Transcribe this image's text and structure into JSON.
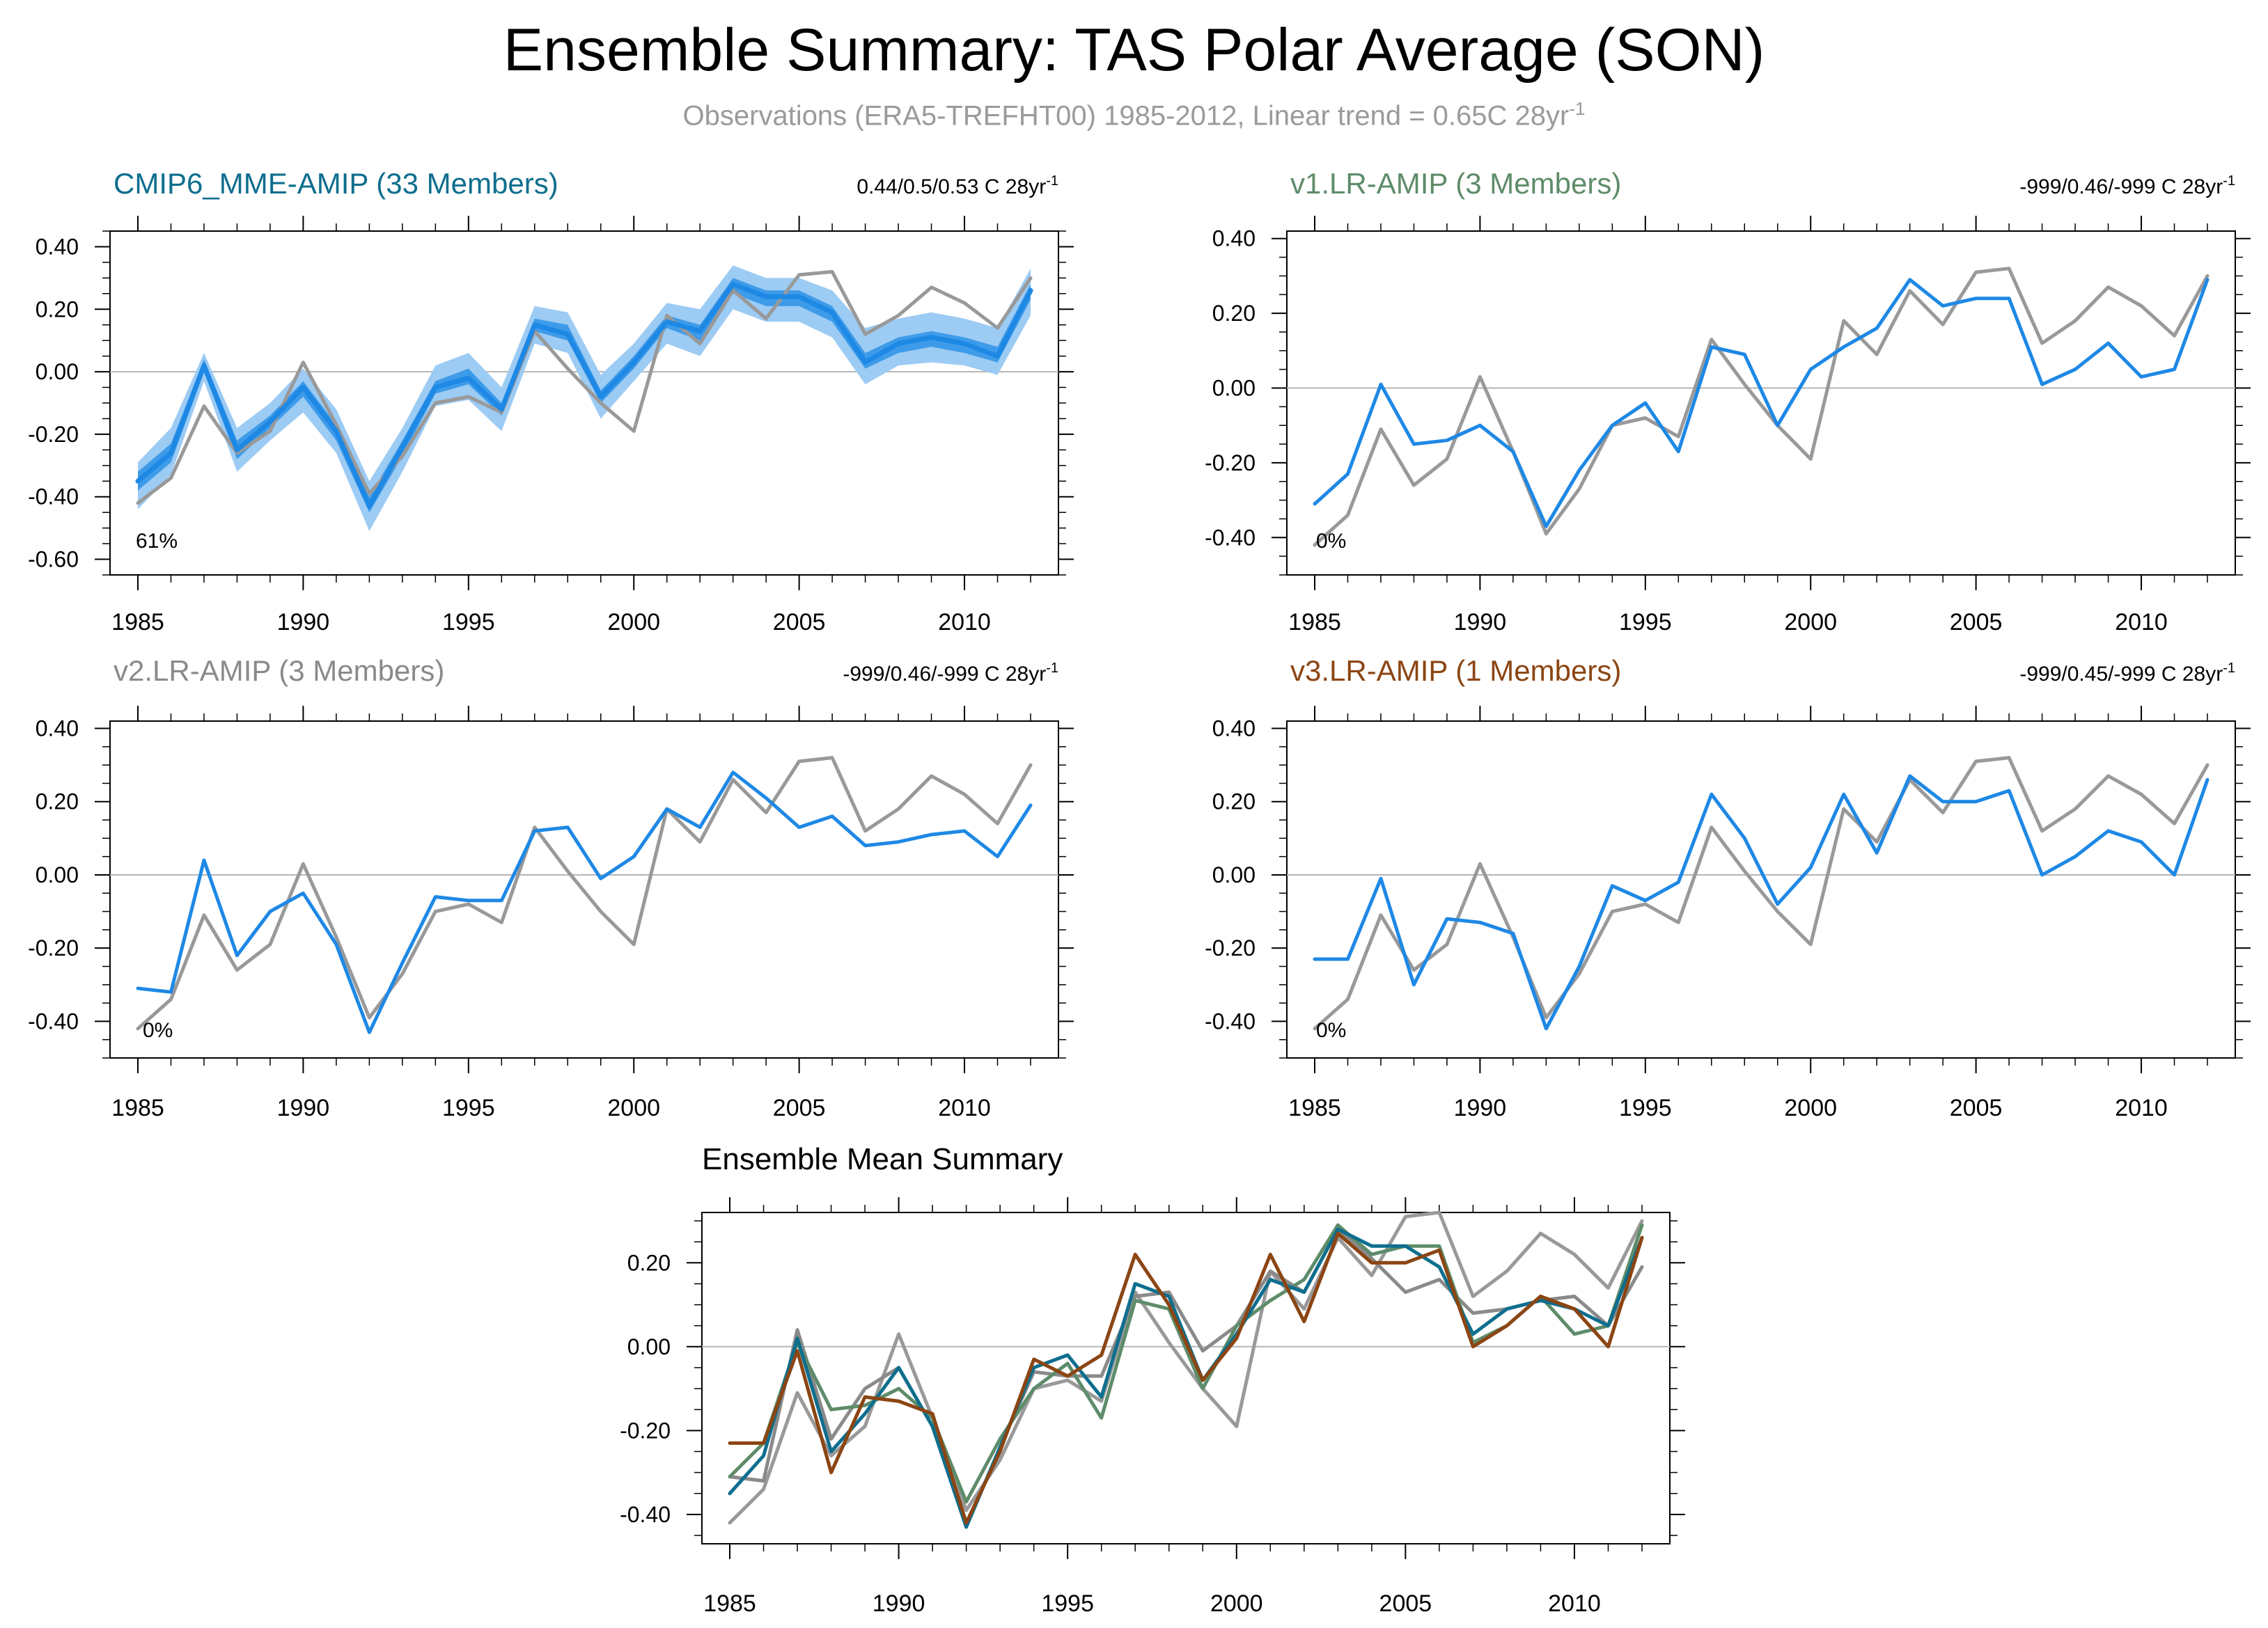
{
  "title": "Ensemble Summary: TAS Polar Average (SON)",
  "subtitle": {
    "main": "Observations (ERA5-TREFHT00) 1985-2012, Linear trend = 0.65C 28yr",
    "exponent": "-1"
  },
  "colors": {
    "observations": "#999999",
    "model": "#1e88e5",
    "band_inner": "#3d9be9",
    "band_outer": "#9ccbf4",
    "cmip6": "#0e6e8e",
    "v1": "#5e8c6a",
    "v2": "#8a8a8a",
    "v3": "#8b4513"
  },
  "chart_data": [
    {
      "id": "cmip6",
      "type": "line",
      "title": "CMIP6_MME-AMIP (33 Members)",
      "title_color": "#0e6e8e",
      "trend_label": "0.44/0.5/0.53 C 28yr",
      "trend_exponent": "-1",
      "percent_label": "61%",
      "ylim": [
        -0.65,
        0.45
      ],
      "yticks": [
        -0.6,
        -0.4,
        -0.2,
        0.0,
        0.2,
        0.4
      ],
      "ytick_labels": [
        "-0.60",
        "-0.40",
        "-0.20",
        "0.00",
        "0.20",
        "0.40"
      ],
      "xlim": [
        1985,
        2012
      ],
      "xticks": [
        1985,
        1990,
        1995,
        2000,
        2005,
        2010
      ],
      "ytick_side": "left",
      "x": [
        1985,
        1986,
        1987,
        1988,
        1989,
        1990,
        1991,
        1992,
        1993,
        1994,
        1995,
        1996,
        1997,
        1998,
        1999,
        2000,
        2001,
        2002,
        2003,
        2004,
        2005,
        2006,
        2007,
        2008,
        2009,
        2010,
        2011,
        2012
      ],
      "bands": [
        {
          "name": "outer",
          "color": "#9ccbf4",
          "lower": [
            -0.44,
            -0.33,
            -0.03,
            -0.32,
            -0.22,
            -0.13,
            -0.26,
            -0.51,
            -0.32,
            -0.11,
            -0.09,
            -0.19,
            0.09,
            0.06,
            -0.15,
            -0.03,
            0.09,
            0.05,
            0.2,
            0.16,
            0.16,
            0.11,
            -0.04,
            0.02,
            0.03,
            0.02,
            -0.01,
            0.18
          ],
          "upper": [
            -0.29,
            -0.18,
            0.06,
            -0.18,
            -0.1,
            0.01,
            -0.12,
            -0.35,
            -0.18,
            0.02,
            0.06,
            -0.05,
            0.21,
            0.19,
            -0.01,
            0.09,
            0.22,
            0.2,
            0.34,
            0.3,
            0.3,
            0.26,
            0.14,
            0.17,
            0.19,
            0.17,
            0.14,
            0.33
          ]
        },
        {
          "name": "inner",
          "color": "#3d9be9",
          "lower": [
            -0.38,
            -0.29,
            0.0,
            -0.28,
            -0.18,
            -0.08,
            -0.22,
            -0.45,
            -0.27,
            -0.07,
            -0.04,
            -0.14,
            0.13,
            0.1,
            -0.1,
            0.01,
            0.14,
            0.1,
            0.25,
            0.21,
            0.21,
            0.16,
            0.01,
            0.06,
            0.08,
            0.06,
            0.03,
            0.23
          ],
          "upper": [
            -0.32,
            -0.23,
            0.04,
            -0.22,
            -0.14,
            -0.03,
            -0.17,
            -0.4,
            -0.22,
            -0.03,
            0.01,
            -0.1,
            0.17,
            0.15,
            -0.06,
            0.05,
            0.18,
            0.15,
            0.3,
            0.26,
            0.26,
            0.21,
            0.06,
            0.11,
            0.13,
            0.11,
            0.08,
            0.28
          ]
        }
      ],
      "series": [
        {
          "role": "obs",
          "color": "#999999",
          "values": [
            -0.42,
            -0.34,
            -0.11,
            -0.26,
            -0.19,
            0.03,
            -0.17,
            -0.39,
            -0.27,
            -0.1,
            -0.08,
            -0.13,
            0.13,
            0.01,
            -0.1,
            -0.19,
            0.18,
            0.09,
            0.26,
            0.17,
            0.31,
            0.32,
            0.12,
            0.18,
            0.27,
            0.22,
            0.14,
            0.3
          ]
        },
        {
          "role": "model",
          "color": "#1e88e5",
          "width": 7,
          "values": [
            -0.35,
            -0.26,
            0.02,
            -0.25,
            -0.16,
            -0.05,
            -0.19,
            -0.43,
            -0.24,
            -0.05,
            -0.02,
            -0.12,
            0.15,
            0.12,
            -0.08,
            0.03,
            0.16,
            0.13,
            0.28,
            0.24,
            0.24,
            0.19,
            0.03,
            0.09,
            0.11,
            0.09,
            0.05,
            0.26
          ]
        }
      ]
    },
    {
      "id": "v1",
      "type": "line",
      "title": "v1.LR-AMIP (3 Members)",
      "title_color": "#5e8c6a",
      "trend_label": "-999/0.46/-999 C 28yr",
      "trend_exponent": "-1",
      "percent_label": "0%",
      "ylim": [
        -0.5,
        0.42
      ],
      "yticks": [
        -0.4,
        -0.2,
        0.0,
        0.2,
        0.4
      ],
      "ytick_labels": [
        "-0.40",
        "-0.20",
        "0.00",
        "0.20",
        "0.40"
      ],
      "xlim": [
        1985,
        2012
      ],
      "xticks": [
        1985,
        1990,
        1995,
        2000,
        2005,
        2010
      ],
      "ytick_side": "left",
      "x": [
        1985,
        1986,
        1987,
        1988,
        1989,
        1990,
        1991,
        1992,
        1993,
        1994,
        1995,
        1996,
        1997,
        1998,
        1999,
        2000,
        2001,
        2002,
        2003,
        2004,
        2005,
        2006,
        2007,
        2008,
        2009,
        2010,
        2011,
        2012
      ],
      "series": [
        {
          "role": "obs",
          "color": "#999999",
          "values": [
            -0.42,
            -0.34,
            -0.11,
            -0.26,
            -0.19,
            0.03,
            -0.17,
            -0.39,
            -0.27,
            -0.1,
            -0.08,
            -0.13,
            0.13,
            0.01,
            -0.1,
            -0.19,
            0.18,
            0.09,
            0.26,
            0.17,
            0.31,
            0.32,
            0.12,
            0.18,
            0.27,
            0.22,
            0.14,
            0.3
          ]
        },
        {
          "role": "model",
          "color": "#1e88e5",
          "values": [
            -0.31,
            -0.23,
            0.01,
            -0.15,
            -0.14,
            -0.1,
            -0.17,
            -0.37,
            -0.22,
            -0.1,
            -0.04,
            -0.17,
            0.11,
            0.09,
            -0.1,
            0.05,
            0.11,
            0.16,
            0.29,
            0.22,
            0.24,
            0.24,
            0.01,
            0.05,
            0.12,
            0.03,
            0.05,
            0.29
          ]
        }
      ]
    },
    {
      "id": "v2",
      "type": "line",
      "title": "v2.LR-AMIP (3 Members)",
      "title_color": "#8a8a8a",
      "trend_label": "-999/0.46/-999 C 28yr",
      "trend_exponent": "-1",
      "percent_label": "0%",
      "ylim": [
        -0.5,
        0.42
      ],
      "yticks": [
        -0.4,
        -0.2,
        0.0,
        0.2,
        0.4
      ],
      "ytick_labels": [
        "-0.40",
        "-0.20",
        "0.00",
        "0.20",
        "0.40"
      ],
      "xlim": [
        1985,
        2012
      ],
      "xticks": [
        1985,
        1990,
        1995,
        2000,
        2005,
        2010
      ],
      "ytick_side": "left",
      "x": [
        1985,
        1986,
        1987,
        1988,
        1989,
        1990,
        1991,
        1992,
        1993,
        1994,
        1995,
        1996,
        1997,
        1998,
        1999,
        2000,
        2001,
        2002,
        2003,
        2004,
        2005,
        2006,
        2007,
        2008,
        2009,
        2010,
        2011,
        2012
      ],
      "series": [
        {
          "role": "obs",
          "color": "#999999",
          "values": [
            -0.42,
            -0.34,
            -0.11,
            -0.26,
            -0.19,
            0.03,
            -0.17,
            -0.39,
            -0.27,
            -0.1,
            -0.08,
            -0.13,
            0.13,
            0.01,
            -0.1,
            -0.19,
            0.18,
            0.09,
            0.26,
            0.17,
            0.31,
            0.32,
            0.12,
            0.18,
            0.27,
            0.22,
            0.14,
            0.3
          ]
        },
        {
          "role": "model",
          "color": "#1e88e5",
          "values": [
            -0.31,
            -0.32,
            0.04,
            -0.22,
            -0.1,
            -0.05,
            -0.19,
            -0.43,
            -0.24,
            -0.06,
            -0.07,
            -0.07,
            0.12,
            0.13,
            -0.01,
            0.05,
            0.18,
            0.13,
            0.28,
            0.21,
            0.13,
            0.16,
            0.08,
            0.09,
            0.11,
            0.12,
            0.05,
            0.19
          ]
        }
      ]
    },
    {
      "id": "v3",
      "type": "line",
      "title": "v3.LR-AMIP (1 Members)",
      "title_color": "#8b4513",
      "trend_label": "-999/0.45/-999 C 28yr",
      "trend_exponent": "-1",
      "percent_label": "0%",
      "ylim": [
        -0.5,
        0.42
      ],
      "yticks": [
        -0.4,
        -0.2,
        0.0,
        0.2,
        0.4
      ],
      "ytick_labels": [
        "-0.40",
        "-0.20",
        "0.00",
        "0.20",
        "0.40"
      ],
      "xlim": [
        1985,
        2012
      ],
      "xticks": [
        1985,
        1990,
        1995,
        2000,
        2005,
        2010
      ],
      "ytick_side": "left",
      "x": [
        1985,
        1986,
        1987,
        1988,
        1989,
        1990,
        1991,
        1992,
        1993,
        1994,
        1995,
        1996,
        1997,
        1998,
        1999,
        2000,
        2001,
        2002,
        2003,
        2004,
        2005,
        2006,
        2007,
        2008,
        2009,
        2010,
        2011,
        2012
      ],
      "series": [
        {
          "role": "obs",
          "color": "#999999",
          "values": [
            -0.42,
            -0.34,
            -0.11,
            -0.26,
            -0.19,
            0.03,
            -0.17,
            -0.39,
            -0.27,
            -0.1,
            -0.08,
            -0.13,
            0.13,
            0.01,
            -0.1,
            -0.19,
            0.18,
            0.09,
            0.26,
            0.17,
            0.31,
            0.32,
            0.12,
            0.18,
            0.27,
            0.22,
            0.14,
            0.3
          ]
        },
        {
          "role": "model",
          "color": "#1e88e5",
          "values": [
            -0.23,
            -0.23,
            -0.01,
            -0.3,
            -0.12,
            -0.13,
            -0.16,
            -0.42,
            -0.25,
            -0.03,
            -0.07,
            -0.02,
            0.22,
            0.1,
            -0.08,
            0.02,
            0.22,
            0.06,
            0.27,
            0.2,
            0.2,
            0.23,
            0.0,
            0.05,
            0.12,
            0.09,
            0.0,
            0.26
          ]
        }
      ]
    },
    {
      "id": "mean",
      "type": "line",
      "title": "Ensemble Mean Summary",
      "title_color": "#000000",
      "ylim": [
        -0.47,
        0.32
      ],
      "yticks": [
        -0.4,
        -0.2,
        0.0,
        0.2
      ],
      "ytick_labels": [
        "-0.40",
        "-0.20",
        "0.00",
        "0.20"
      ],
      "xlim": [
        1985,
        2012
      ],
      "xticks": [
        1985,
        1990,
        1995,
        2000,
        2005,
        2010
      ],
      "ytick_side": "left",
      "x": [
        1985,
        1986,
        1987,
        1988,
        1989,
        1990,
        1991,
        1992,
        1993,
        1994,
        1995,
        1996,
        1997,
        1998,
        1999,
        2000,
        2001,
        2002,
        2003,
        2004,
        2005,
        2006,
        2007,
        2008,
        2009,
        2010,
        2011,
        2012
      ],
      "series": [
        {
          "role": "obs",
          "color": "#999999",
          "values": [
            -0.42,
            -0.34,
            -0.11,
            -0.26,
            -0.19,
            0.03,
            -0.17,
            -0.39,
            -0.27,
            -0.1,
            -0.08,
            -0.13,
            0.13,
            0.01,
            -0.1,
            -0.19,
            0.18,
            0.09,
            0.26,
            0.17,
            0.31,
            0.32,
            0.12,
            0.18,
            0.27,
            0.22,
            0.14,
            0.3
          ]
        },
        {
          "role": "v2",
          "color": "#8a8a8a",
          "values": [
            -0.31,
            -0.32,
            0.04,
            -0.22,
            -0.1,
            -0.05,
            -0.19,
            -0.43,
            -0.24,
            -0.06,
            -0.07,
            -0.07,
            0.12,
            0.13,
            -0.01,
            0.05,
            0.18,
            0.13,
            0.28,
            0.21,
            0.13,
            0.16,
            0.08,
            0.09,
            0.11,
            0.12,
            0.05,
            0.19
          ]
        },
        {
          "role": "v1",
          "color": "#5e8c6a",
          "values": [
            -0.31,
            -0.23,
            0.01,
            -0.15,
            -0.14,
            -0.1,
            -0.17,
            -0.37,
            -0.22,
            -0.1,
            -0.04,
            -0.17,
            0.11,
            0.09,
            -0.1,
            0.05,
            0.11,
            0.16,
            0.29,
            0.22,
            0.24,
            0.24,
            0.01,
            0.05,
            0.12,
            0.03,
            0.05,
            0.29
          ]
        },
        {
          "role": "cmip6",
          "color": "#0e6e8e",
          "values": [
            -0.35,
            -0.26,
            0.02,
            -0.25,
            -0.16,
            -0.05,
            -0.19,
            -0.43,
            -0.24,
            -0.05,
            -0.02,
            -0.12,
            0.15,
            0.12,
            -0.08,
            0.03,
            0.16,
            0.13,
            0.28,
            0.24,
            0.24,
            0.19,
            0.03,
            0.09,
            0.11,
            0.09,
            0.05,
            0.26
          ]
        },
        {
          "role": "v3",
          "color": "#8b4513",
          "values": [
            -0.23,
            -0.23,
            -0.01,
            -0.3,
            -0.12,
            -0.13,
            -0.16,
            -0.42,
            -0.25,
            -0.03,
            -0.07,
            -0.02,
            0.22,
            0.1,
            -0.08,
            0.02,
            0.22,
            0.06,
            0.27,
            0.2,
            0.2,
            0.23,
            0.0,
            0.05,
            0.12,
            0.09,
            0.0,
            0.26
          ]
        }
      ]
    }
  ]
}
